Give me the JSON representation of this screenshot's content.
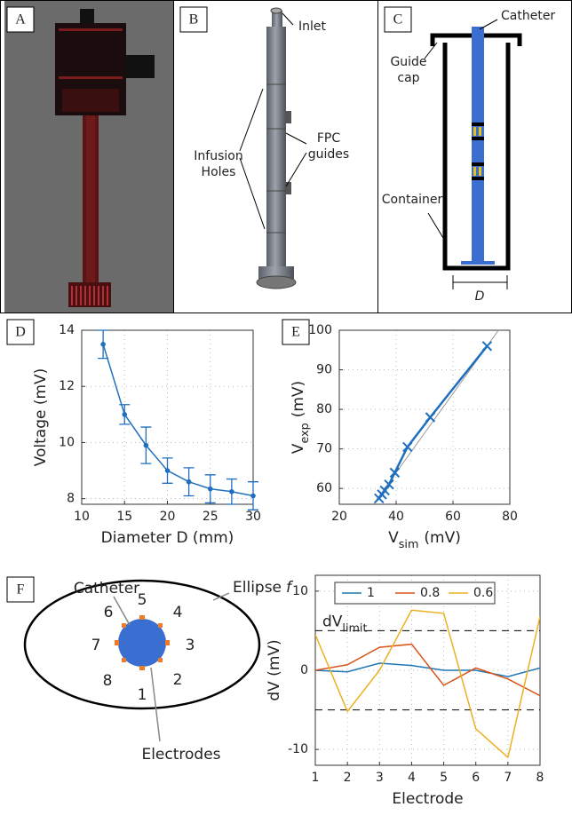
{
  "panel_labels": [
    "A",
    "B",
    "C",
    "D",
    "E",
    "F"
  ],
  "diagram_b": {
    "inlet": "Inlet",
    "infusion_holes": [
      "Infusion",
      "Holes"
    ],
    "fpc_guides": [
      "FPC",
      "guides"
    ]
  },
  "diagram_c": {
    "catheter": "Catheter",
    "guide_cap": [
      "Guide",
      "cap"
    ],
    "container": "Container",
    "dimension": "D"
  },
  "diagram_f": {
    "catheter": "Catheter",
    "electrodes": "Electrodes",
    "ellipse": "Ellipse",
    "ellipse_var": "f",
    "numbers": [
      "1",
      "2",
      "3",
      "4",
      "5",
      "6",
      "7",
      "8"
    ]
  },
  "chart_data": [
    {
      "type": "line",
      "x_label": "Diameter D (mm)",
      "y_label": "Voltage (mV)",
      "xlim": [
        10,
        30
      ],
      "xticks": [
        10,
        15,
        20,
        25,
        30
      ],
      "ylim": [
        7.8,
        14
      ],
      "yticks": [
        8,
        10,
        12,
        14
      ],
      "grid": true,
      "series": [
        {
          "color": "#1f6fbf",
          "marker": "o",
          "x": [
            12.5,
            15,
            17.5,
            20,
            22.5,
            25,
            27.5,
            30
          ],
          "values": [
            13.5,
            11,
            9.9,
            9.0,
            8.6,
            8.35,
            8.25,
            8.1
          ],
          "errors": [
            0.5,
            0.35,
            0.65,
            0.45,
            0.5,
            0.5,
            0.45,
            0.5
          ]
        }
      ]
    },
    {
      "type": "line",
      "x_label": {
        "text": "V",
        "sub": "sim",
        "unit": "(mV)"
      },
      "y_label": {
        "text": "V",
        "sub": "exp",
        "unit": "(mV)"
      },
      "xlim": [
        20,
        80
      ],
      "xticks": [
        20,
        40,
        60,
        80
      ],
      "ylim": [
        56,
        100
      ],
      "yticks": [
        60,
        70,
        80,
        90,
        100
      ],
      "grid": true,
      "series": [
        {
          "color": "#999999",
          "marker": "none",
          "width": 1,
          "x": [
            32,
            76
          ],
          "values": [
            56,
            100
          ]
        },
        {
          "color": "#1f6fbf",
          "marker": "x",
          "width": 2.5,
          "x": [
            34,
            35,
            36,
            37.5,
            39.5,
            44,
            52,
            72
          ],
          "values": [
            57.5,
            58.5,
            59.5,
            61,
            64,
            70.5,
            78,
            96
          ]
        }
      ]
    },
    {
      "type": "line",
      "x_label": "Electrode",
      "y_label": "dV (mV)",
      "xlim": [
        1,
        8
      ],
      "xticks": [
        1,
        2,
        3,
        4,
        5,
        6,
        7,
        8
      ],
      "ylim": [
        -12,
        12
      ],
      "yticks": [
        -10,
        0,
        10
      ],
      "grid": true,
      "hlines": [
        5,
        -5
      ],
      "annotation": {
        "text": "dV",
        "sub": "limit"
      },
      "legend": "top-left",
      "series": [
        {
          "name": "1",
          "color": "#1f77b4",
          "x": [
            1,
            2,
            3,
            4,
            5,
            6,
            7,
            8
          ],
          "values": [
            0,
            -0.2,
            0.9,
            0.6,
            0,
            0,
            -0.8,
            0.3
          ]
        },
        {
          "name": "0.8",
          "color": "#d95319",
          "x": [
            1,
            2,
            3,
            4,
            5,
            6,
            7,
            8
          ],
          "values": [
            0,
            0.7,
            2.9,
            3.3,
            -1.9,
            0.3,
            -1.1,
            -3.2
          ]
        },
        {
          "name": "0.6",
          "color": "#edb120",
          "x": [
            1,
            2,
            3,
            4,
            5,
            6,
            7,
            8
          ],
          "values": [
            4.5,
            -5.2,
            0,
            7.6,
            7.2,
            -7.4,
            -11,
            6.8
          ]
        }
      ]
    }
  ]
}
